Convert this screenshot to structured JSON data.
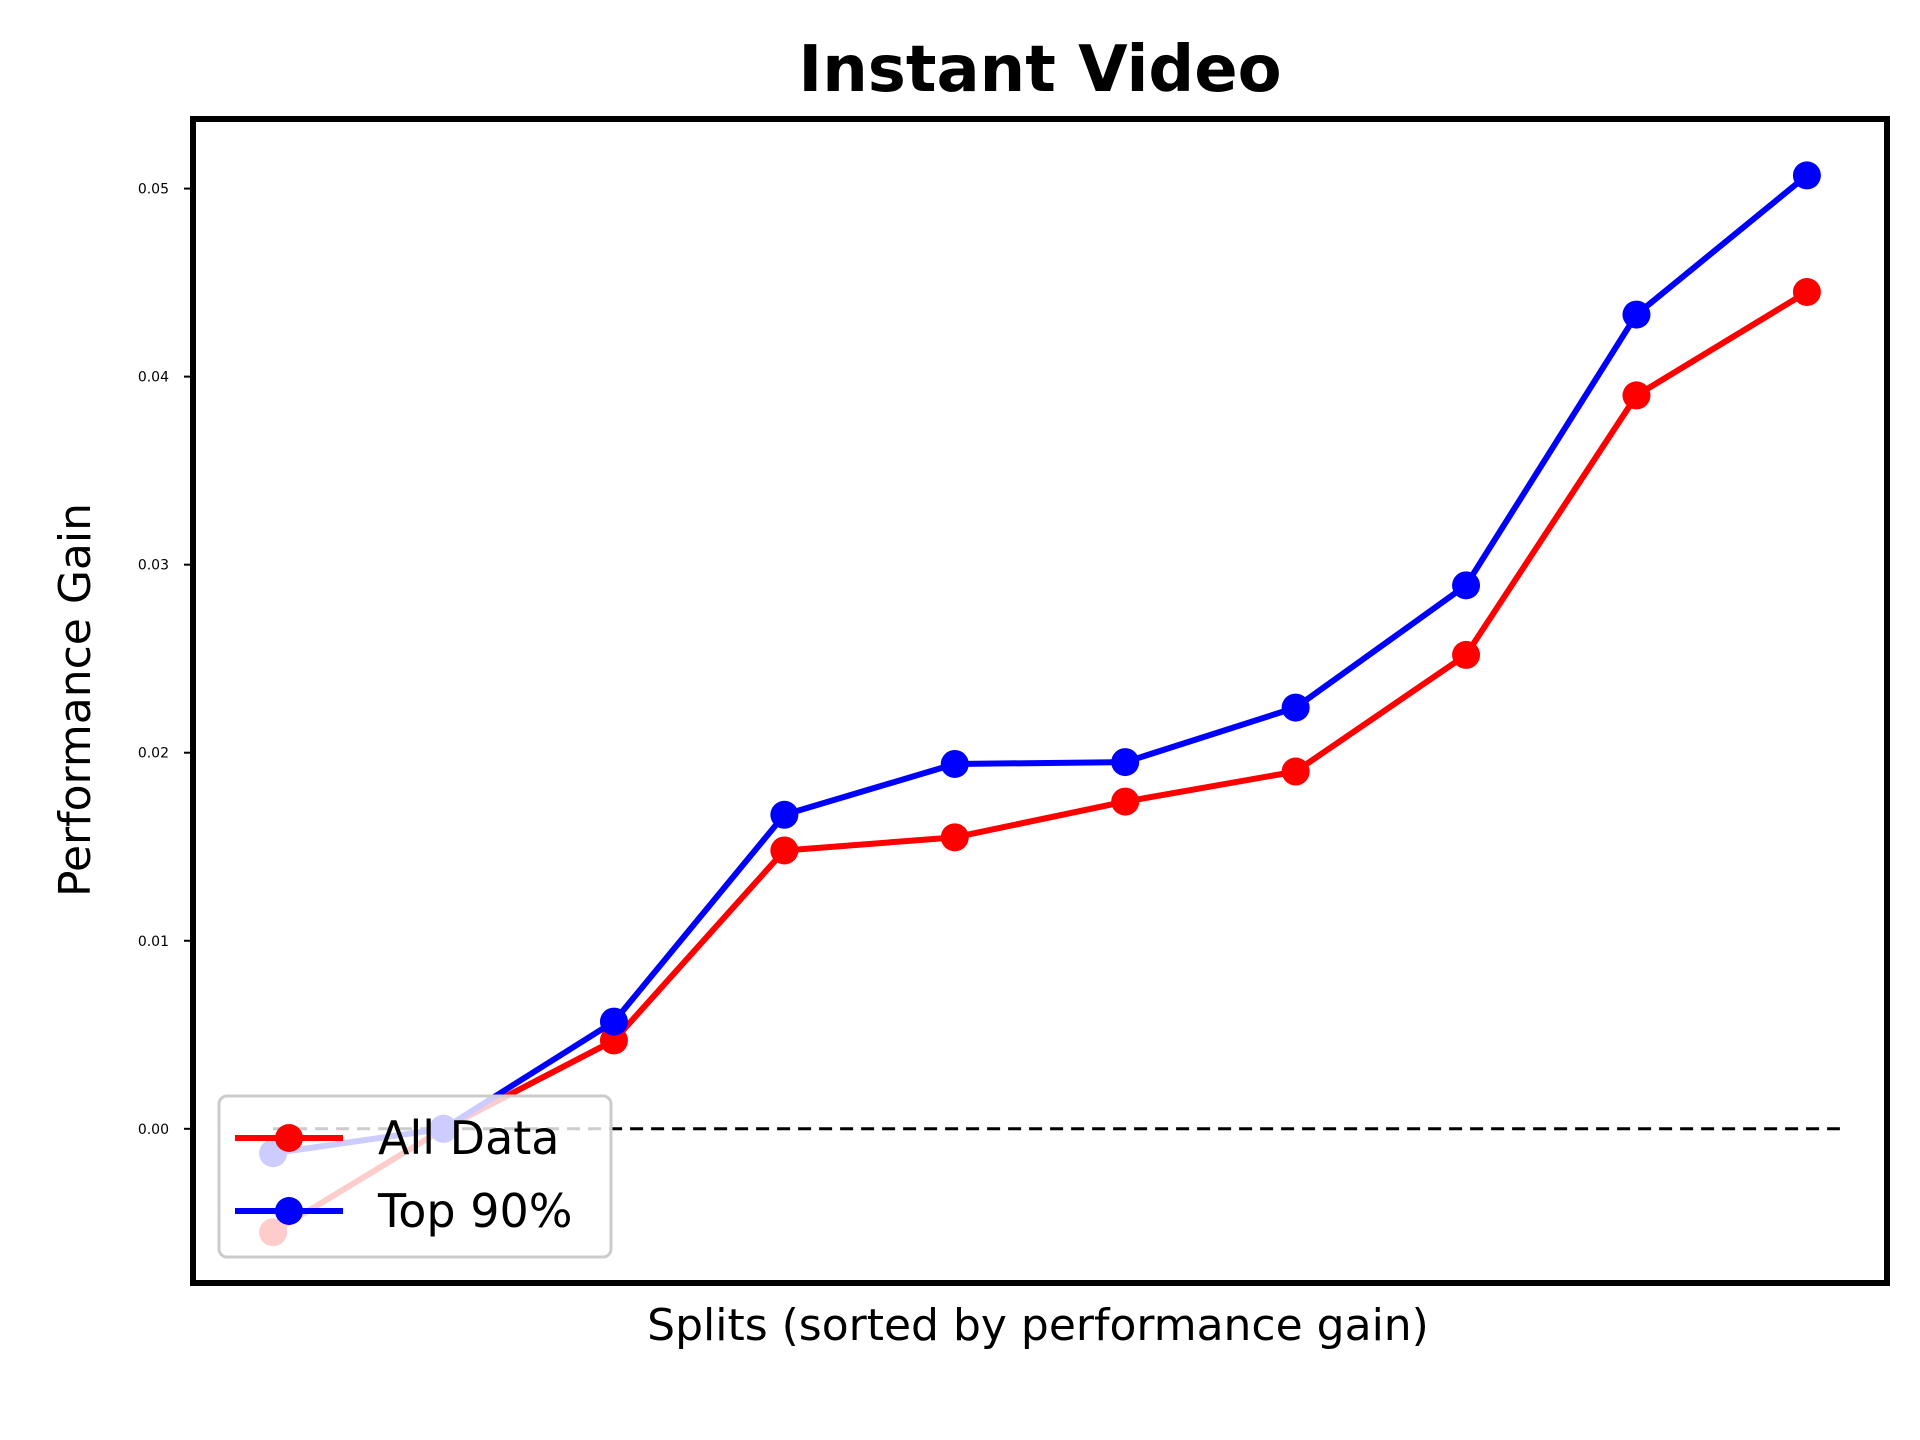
{
  "chart_data": {
    "type": "line",
    "title": "Instant Video",
    "xlabel": "Splits (sorted by performance gain)",
    "ylabel": "Performance Gain",
    "x": [
      1,
      2,
      3,
      4,
      5,
      6,
      7,
      8,
      9,
      10
    ],
    "xlim": [
      0.53,
      10.47
    ],
    "ylim": [
      -0.0082,
      0.0537
    ],
    "yticks": [
      0.0,
      0.01,
      0.02,
      0.03,
      0.04,
      0.05
    ],
    "ytick_labels": [
      "0.00",
      "0.01",
      "0.02",
      "0.03",
      "0.04",
      "0.05"
    ],
    "xticks_visible": false,
    "grid": false,
    "reference_line": {
      "y": 0.0,
      "style": "dashed",
      "color": "#000000"
    },
    "legend": {
      "placement": "lower-left"
    },
    "series": [
      {
        "name": "All Data",
        "color": "#ff0000",
        "values": [
          -0.0055,
          0.0,
          0.0047,
          0.0148,
          0.0155,
          0.0174,
          0.019,
          0.0252,
          0.039,
          0.0445
        ]
      },
      {
        "name": "Top 90%",
        "color": "#0000ff",
        "values": [
          -0.0013,
          0.0,
          0.0057,
          0.0167,
          0.0194,
          0.0195,
          0.0224,
          0.0289,
          0.0433,
          0.0507
        ]
      }
    ]
  }
}
